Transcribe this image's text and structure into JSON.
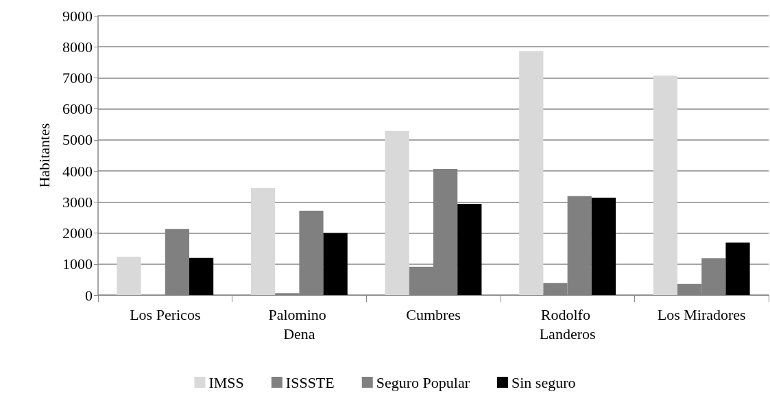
{
  "chart_data": {
    "type": "bar",
    "ylabel": "Habitantes",
    "categories": [
      "Los Pericos",
      "Palomino Dena",
      "Cumbres",
      "Rodolfo Landeros",
      "Los Miradores"
    ],
    "series": [
      {
        "name": "IMSS",
        "color": "#d9d9d9",
        "values": [
          1240,
          3450,
          5290,
          7860,
          7070
        ]
      },
      {
        "name": "ISSSTE",
        "color": "#808080",
        "values": [
          0,
          60,
          910,
          390,
          360
        ]
      },
      {
        "name": "Seguro Popular",
        "color": "#808080",
        "values": [
          2130,
          2720,
          4070,
          3190,
          1190
        ]
      },
      {
        "name": "Sin seguro",
        "color": "#000000",
        "values": [
          1200,
          2000,
          2940,
          3140,
          1690
        ]
      }
    ],
    "ylim": [
      0,
      9000
    ],
    "yticks": [
      0,
      1000,
      2000,
      3000,
      4000,
      5000,
      6000,
      7000,
      8000,
      9000
    ],
    "grid": "y",
    "legend": "bottom"
  }
}
